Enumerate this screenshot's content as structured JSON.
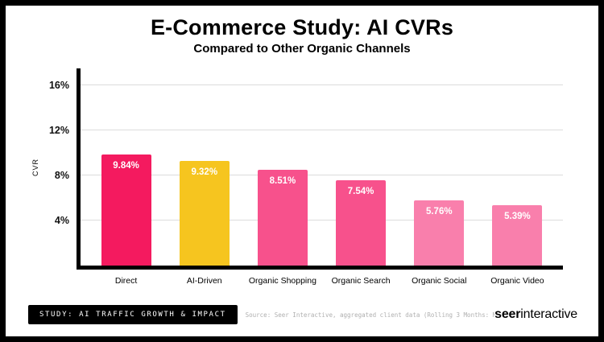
{
  "page": {
    "title": "E-Commerce Study: AI CVRs",
    "subtitle": "Compared to Other Organic Channels"
  },
  "chart_data": {
    "type": "bar",
    "title": "E-Commerce Study: AI CVRs",
    "subtitle": "Compared to Other Organic Channels",
    "ylabel": "CVR",
    "xlabel": "",
    "categories": [
      "Direct",
      "AI-Driven",
      "Organic Shopping",
      "Organic Search",
      "Organic Social",
      "Organic Video"
    ],
    "values": [
      9.84,
      9.32,
      8.51,
      7.54,
      5.76,
      5.39
    ],
    "value_labels": [
      "9.84%",
      "9.32%",
      "8.51%",
      "7.54%",
      "5.76%",
      "5.39%"
    ],
    "bar_colors": [
      "#F41A5F",
      "#F6C51F",
      "#F7518C",
      "#F7518C",
      "#F97FAC",
      "#F97FAC"
    ],
    "ytick_values": [
      4,
      8,
      12,
      16
    ],
    "ytick_labels": [
      "4%",
      "8%",
      "12%",
      "16%"
    ],
    "ylim": [
      0,
      17.5
    ],
    "grid": true,
    "legend": false
  },
  "footer": {
    "badge": "STUDY: AI TRAFFIC GROWTH & IMPACT",
    "source": "Source: Seer Interactive, aggregated client data (Rolling 3 Months: May-Jul'25)",
    "logo_bold": "seer",
    "logo_regular": "interactive"
  }
}
